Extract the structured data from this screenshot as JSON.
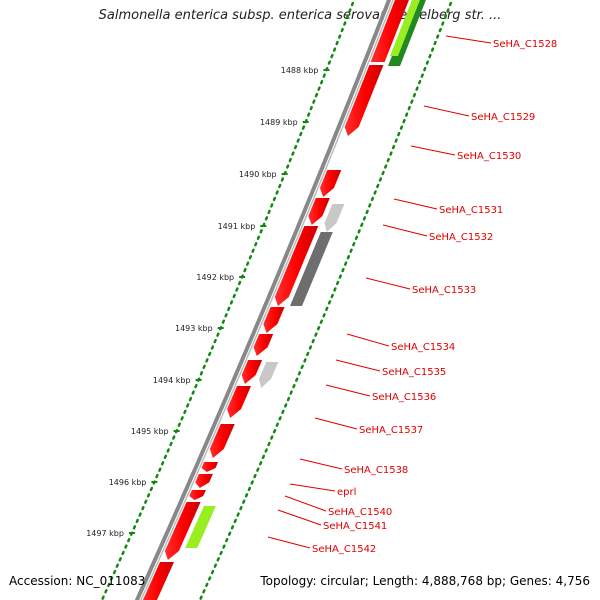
{
  "title": "Salmonella enterica subsp. enterica serovar Heidelberg str. ...",
  "footer": {
    "accession": "Accession: NC_011083",
    "topology": "Topology: circular; Length: 4,888,768 bp; Genes: 4,756"
  },
  "kbp_labels": [
    "1488 kbp",
    "1489 kbp",
    "1490 kbp",
    "1491 kbp",
    "1492 kbp",
    "1493 kbp",
    "1494 kbp",
    "1495 kbp",
    "1496 kbp",
    "1497 kbp"
  ],
  "genes": [
    {
      "label": "SeHA_C1528"
    },
    {
      "label": "SeHA_C1529"
    },
    {
      "label": "SeHA_C1530"
    },
    {
      "label": "SeHA_C1531"
    },
    {
      "label": "SeHA_C1532"
    },
    {
      "label": "SeHA_C1533"
    },
    {
      "label": "SeHA_C1534"
    },
    {
      "label": "SeHA_C1535"
    },
    {
      "label": "SeHA_C1536"
    },
    {
      "label": "SeHA_C1537"
    },
    {
      "label": "SeHA_C1538"
    },
    {
      "label": "eprl"
    },
    {
      "label": "SeHA_C1540"
    },
    {
      "label": "SeHA_C1541"
    },
    {
      "label": "SeHA_C1542"
    }
  ],
  "colors": {
    "gene": "#ff1010",
    "pseudo_light": "#c8c8c8",
    "pseudo_dark": "#6e6e6e",
    "green_light": "#99ee22",
    "green_dark": "#228822",
    "backbone": "#888888",
    "ticks": "#118811",
    "label": "#e00000"
  }
}
